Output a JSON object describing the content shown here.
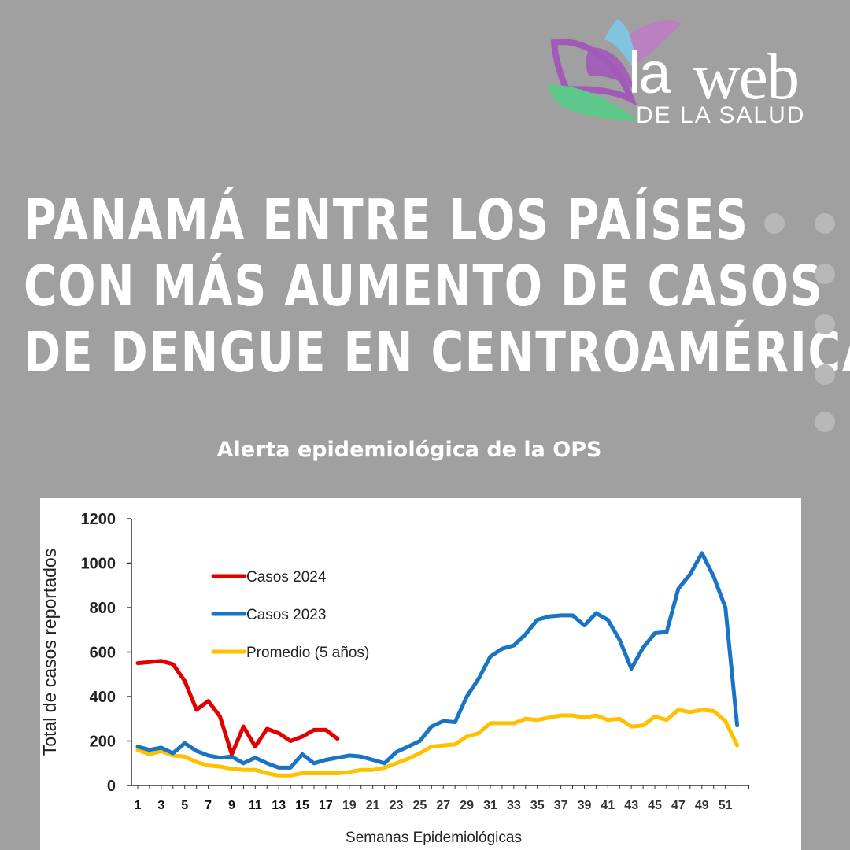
{
  "logo": {
    "la": "la",
    "web": "web",
    "sub": "DE LA SALUD"
  },
  "headline": [
    "PANAMÁ ENTRE LOS PAÍSES",
    "CON MÁS AUMENTO DE CASOS",
    "DE DENGUE EN CENTROAMÉRICA"
  ],
  "subtitle": "Alerta epidemiológica de la OPS",
  "colors": {
    "background": "#a0a0a0",
    "series_2024": "#e00000",
    "series_2023": "#1a74c4",
    "series_avg": "#ffc000"
  },
  "chart_data": {
    "type": "line",
    "xlabel": "Semanas Epidemiológicas",
    "ylabel": "Total de casos reportados",
    "ylim": [
      0,
      1200
    ],
    "yticks": [
      0,
      200,
      400,
      600,
      800,
      1000,
      1200
    ],
    "xlim": [
      1,
      53
    ],
    "xticks": [
      1,
      3,
      5,
      7,
      9,
      11,
      13,
      15,
      17,
      19,
      21,
      23,
      25,
      27,
      29,
      31,
      33,
      35,
      37,
      39,
      41,
      43,
      45,
      47,
      49,
      51
    ],
    "x_tick_labels_bold": [
      1,
      3,
      5,
      7,
      9,
      11,
      13,
      15,
      17
    ],
    "grid": false,
    "legend_position": "upper-left",
    "series": [
      {
        "name": "Casos 2024",
        "color": "#e00000",
        "x": [
          1,
          2,
          3,
          4,
          5,
          6,
          7,
          8,
          9,
          10,
          11,
          12,
          13,
          14,
          15,
          16,
          17,
          18
        ],
        "values": [
          550,
          555,
          560,
          545,
          470,
          340,
          380,
          310,
          140,
          265,
          175,
          255,
          235,
          200,
          220,
          250,
          250,
          210
        ]
      },
      {
        "name": "Casos 2023",
        "color": "#1a74c4",
        "x": [
          1,
          2,
          3,
          4,
          5,
          6,
          7,
          8,
          9,
          10,
          11,
          12,
          13,
          14,
          15,
          16,
          17,
          18,
          19,
          20,
          21,
          22,
          23,
          24,
          25,
          26,
          27,
          28,
          29,
          30,
          31,
          32,
          33,
          34,
          35,
          36,
          37,
          38,
          39,
          40,
          41,
          42,
          43,
          44,
          45,
          46,
          47,
          48,
          49,
          50,
          51,
          52
        ],
        "values": [
          175,
          160,
          170,
          145,
          190,
          155,
          135,
          125,
          130,
          100,
          125,
          100,
          80,
          80,
          140,
          100,
          115,
          125,
          135,
          130,
          115,
          100,
          150,
          175,
          200,
          265,
          290,
          285,
          400,
          480,
          580,
          615,
          630,
          680,
          745,
          760,
          765,
          765,
          720,
          775,
          745,
          655,
          525,
          620,
          685,
          690,
          885,
          950,
          1045,
          940,
          800,
          270
        ]
      },
      {
        "name": "Promedio (5 años)",
        "color": "#ffc000",
        "x": [
          1,
          2,
          3,
          4,
          5,
          6,
          7,
          8,
          9,
          10,
          11,
          12,
          13,
          14,
          15,
          16,
          17,
          18,
          19,
          20,
          21,
          22,
          23,
          24,
          25,
          26,
          27,
          28,
          29,
          30,
          31,
          32,
          33,
          34,
          35,
          36,
          37,
          38,
          39,
          40,
          41,
          42,
          43,
          44,
          45,
          46,
          47,
          48,
          49,
          50,
          51,
          52
        ],
        "values": [
          160,
          140,
          155,
          135,
          130,
          105,
          90,
          85,
          75,
          70,
          70,
          55,
          45,
          45,
          55,
          55,
          55,
          55,
          60,
          70,
          70,
          80,
          100,
          120,
          145,
          175,
          180,
          185,
          220,
          235,
          280,
          280,
          280,
          300,
          295,
          305,
          315,
          315,
          305,
          315,
          295,
          300,
          265,
          270,
          310,
          295,
          340,
          330,
          340,
          335,
          290,
          180
        ]
      }
    ]
  }
}
